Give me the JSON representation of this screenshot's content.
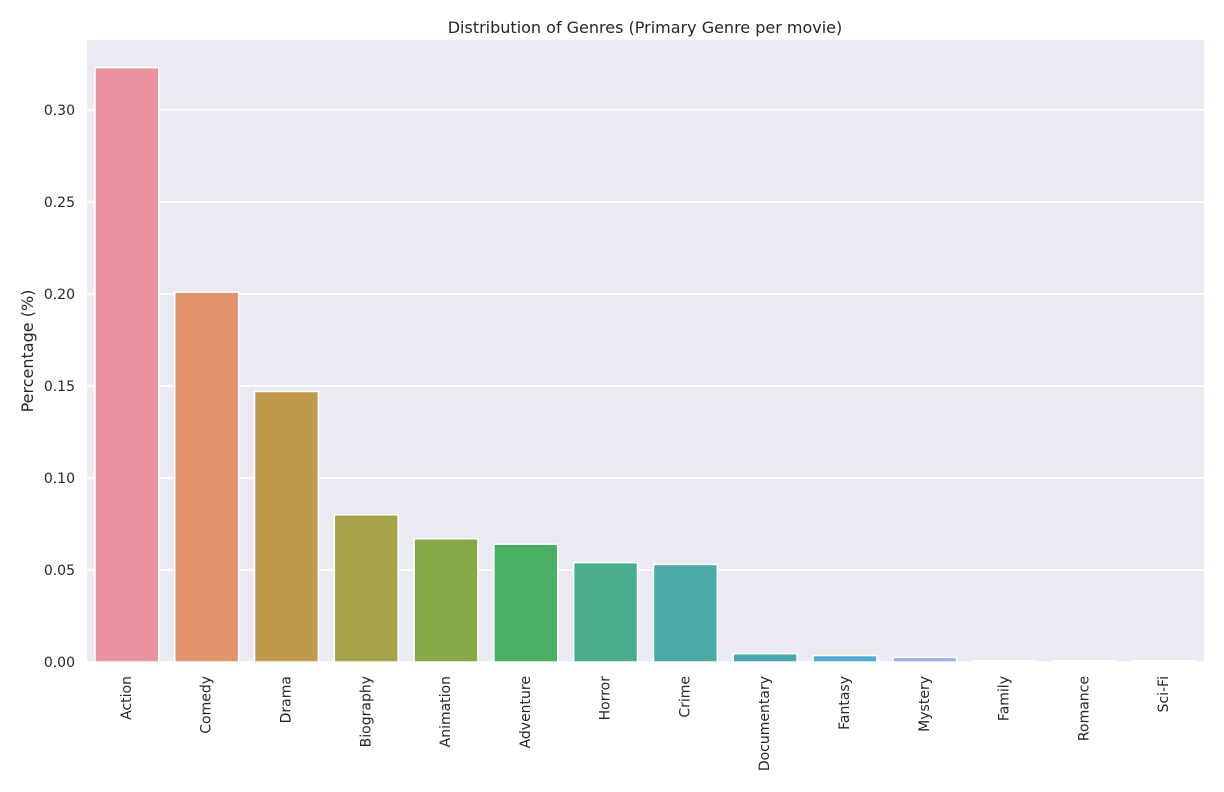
{
  "chart_data": {
    "type": "bar",
    "title": "Distribution of Genres (Primary Genre per movie)",
    "xlabel": "",
    "ylabel": "Percentage (%)",
    "categories": [
      "Action",
      "Comedy",
      "Drama",
      "Biography",
      "Animation",
      "Adventure",
      "Horror",
      "Crime",
      "Documentary",
      "Fantasy",
      "Mystery",
      "Family",
      "Romance",
      "Sci-Fi"
    ],
    "values": [
      0.323,
      0.201,
      0.147,
      0.08,
      0.067,
      0.064,
      0.054,
      0.053,
      0.0045,
      0.0035,
      0.0025,
      0.0007,
      0.0007,
      0.0007
    ],
    "colors": [
      "#e8939f",
      "#e3946a",
      "#c0994a",
      "#a5a247",
      "#87a848",
      "#49b062",
      "#4aad8e",
      "#4aaaa8",
      "#4aa8b3",
      "#4eabd7",
      "#9bacea",
      "#c1a7ee",
      "#e49ee7",
      "#e79cc6"
    ],
    "ylim": [
      0,
      0.338
    ],
    "yticks": [
      0.0,
      0.05,
      0.1,
      0.15,
      0.2,
      0.25,
      0.3
    ],
    "ytick_labels": [
      "0.00",
      "0.05",
      "0.10",
      "0.15",
      "0.20",
      "0.25",
      "0.30"
    ],
    "grid": true,
    "background_color": "#eaeaf2"
  }
}
